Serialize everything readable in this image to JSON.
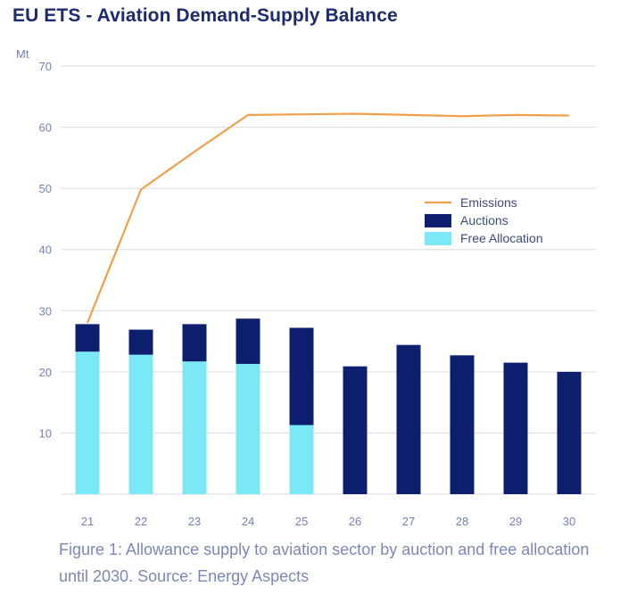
{
  "title": "EU ETS - Aviation Demand-Supply Balance",
  "caption": "Figure 1: Allowance supply to aviation sector by auction and free allocation until 2030. Source: Energy Aspects",
  "colors": {
    "emissions": "#f0a04b",
    "auctions": "#0e1f6e",
    "free_allocation": "#7ae8f7",
    "grid": "#dcdcdc",
    "axis_text": "#7480b5"
  },
  "chart_data": {
    "type": "bar",
    "ylabel": "Mt",
    "ylim": [
      0,
      70
    ],
    "yticks": [
      10,
      20,
      30,
      40,
      50,
      60,
      70
    ],
    "categories": [
      "21",
      "22",
      "23",
      "24",
      "25",
      "26",
      "27",
      "28",
      "29",
      "30"
    ],
    "stacked": true,
    "series": [
      {
        "name": "Free Allocation",
        "kind": "bar",
        "values": [
          23.3,
          22.8,
          21.7,
          21.3,
          11.3,
          0,
          0,
          0,
          0,
          0
        ]
      },
      {
        "name": "Auctions",
        "kind": "bar",
        "values": [
          4.5,
          4.1,
          6.1,
          7.4,
          15.9,
          20.9,
          24.4,
          22.7,
          21.5,
          20.0
        ]
      },
      {
        "name": "Emissions",
        "kind": "line",
        "values": [
          28.0,
          49.8,
          56.0,
          62.0,
          62.1,
          62.2,
          62.0,
          61.8,
          62.0,
          61.9
        ]
      }
    ],
    "legend": {
      "position": "upper-right",
      "entries": [
        {
          "label": "Emissions",
          "series": "Emissions"
        },
        {
          "label": "Auctions",
          "series": "Auctions"
        },
        {
          "label": "Free Allocation",
          "series": "Free Allocation"
        }
      ]
    }
  }
}
